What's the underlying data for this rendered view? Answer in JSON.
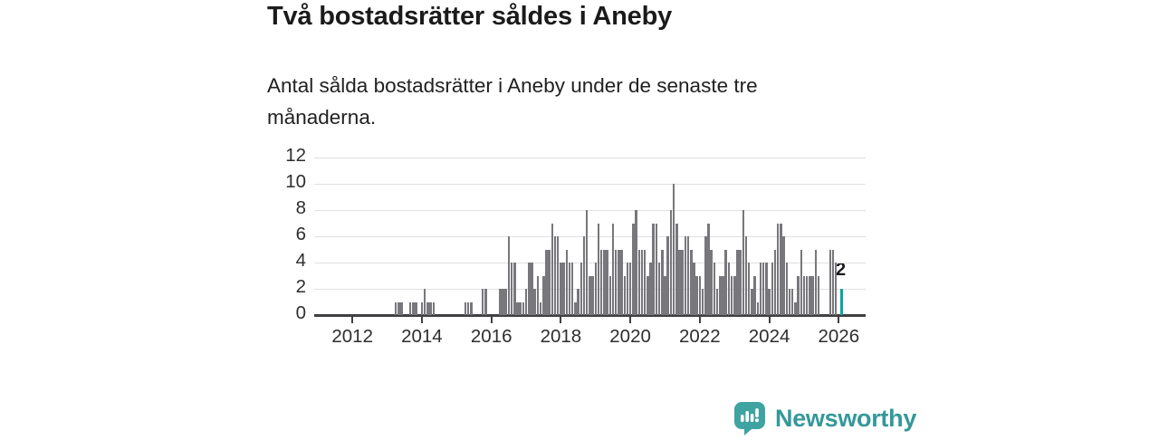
{
  "header": {
    "title": "Två bostadsrätter såldes i Aneby",
    "subtitle": "Antal sålda bostadsrätter i Aneby under de senaste tre månaderna."
  },
  "branding": {
    "name": "Newsworthy",
    "icon": "newsworthy-speech-bubble-chart-icon"
  },
  "colors": {
    "bar": "#77777c",
    "highlight": "#0aa5a0",
    "axis": "#404043",
    "grid": "#e0e0e0",
    "tick_text": "#2e2e30",
    "title_text": "#1b1b1b",
    "body_text": "#212121",
    "annotation_text": "#1b1b1b",
    "brand_icon": "#3fa3a1",
    "brand_text": "#35989a"
  },
  "chart_data": {
    "type": "bar",
    "title": "Två bostadsrätter såldes i Aneby",
    "subtitle": "Antal sålda bostadsrätter i Aneby under de senaste tre månaderna.",
    "xlabel": "",
    "ylabel": "",
    "frequency": "monthly",
    "x_start": "2011-01",
    "x_end": "2026-02",
    "ylim": [
      0,
      12
    ],
    "grid": true,
    "yticks": [
      0,
      2,
      4,
      6,
      8,
      10,
      12
    ],
    "xticks": [
      "2012",
      "2014",
      "2016",
      "2018",
      "2020",
      "2022",
      "2024",
      "2026"
    ],
    "series": [
      {
        "name": "Antal sålda bostadsrätter",
        "values": [
          0,
          0,
          0,
          0,
          0,
          0,
          0,
          0,
          0,
          0,
          0,
          0,
          0,
          0,
          0,
          0,
          0,
          0,
          0,
          0,
          0,
          0,
          0,
          0,
          0,
          0,
          0,
          1,
          1,
          1,
          0,
          0,
          1,
          1,
          1,
          0,
          1,
          2,
          1,
          1,
          1,
          0,
          0,
          0,
          0,
          0,
          0,
          0,
          0,
          0,
          0,
          1,
          1,
          1,
          0,
          0,
          0,
          2,
          2,
          0,
          0,
          0,
          0,
          2,
          2,
          2,
          6,
          4,
          4,
          1,
          1,
          1,
          2,
          4,
          4,
          2,
          3,
          1,
          3,
          5,
          5,
          7,
          6,
          6,
          4,
          4,
          5,
          4,
          4,
          1,
          2,
          4,
          6,
          8,
          3,
          3,
          4,
          7,
          5,
          5,
          5,
          3,
          7,
          5,
          5,
          5,
          3,
          4,
          4,
          7,
          8,
          5,
          5,
          5,
          3,
          4,
          7,
          7,
          4,
          5,
          3,
          6,
          8,
          10,
          7,
          5,
          5,
          6,
          6,
          5,
          4,
          3,
          3,
          2,
          6,
          7,
          5,
          4,
          2,
          3,
          3,
          5,
          4,
          3,
          3,
          5,
          5,
          8,
          6,
          4,
          2,
          3,
          1,
          4,
          4,
          4,
          2,
          4,
          5,
          7,
          7,
          6,
          4,
          2,
          2,
          1,
          3,
          5,
          3,
          3,
          3,
          3,
          5,
          3,
          0,
          0,
          0,
          5,
          5,
          4,
          0,
          2
        ]
      }
    ],
    "highlight": {
      "index": 181,
      "value": 2,
      "label": "2"
    }
  }
}
